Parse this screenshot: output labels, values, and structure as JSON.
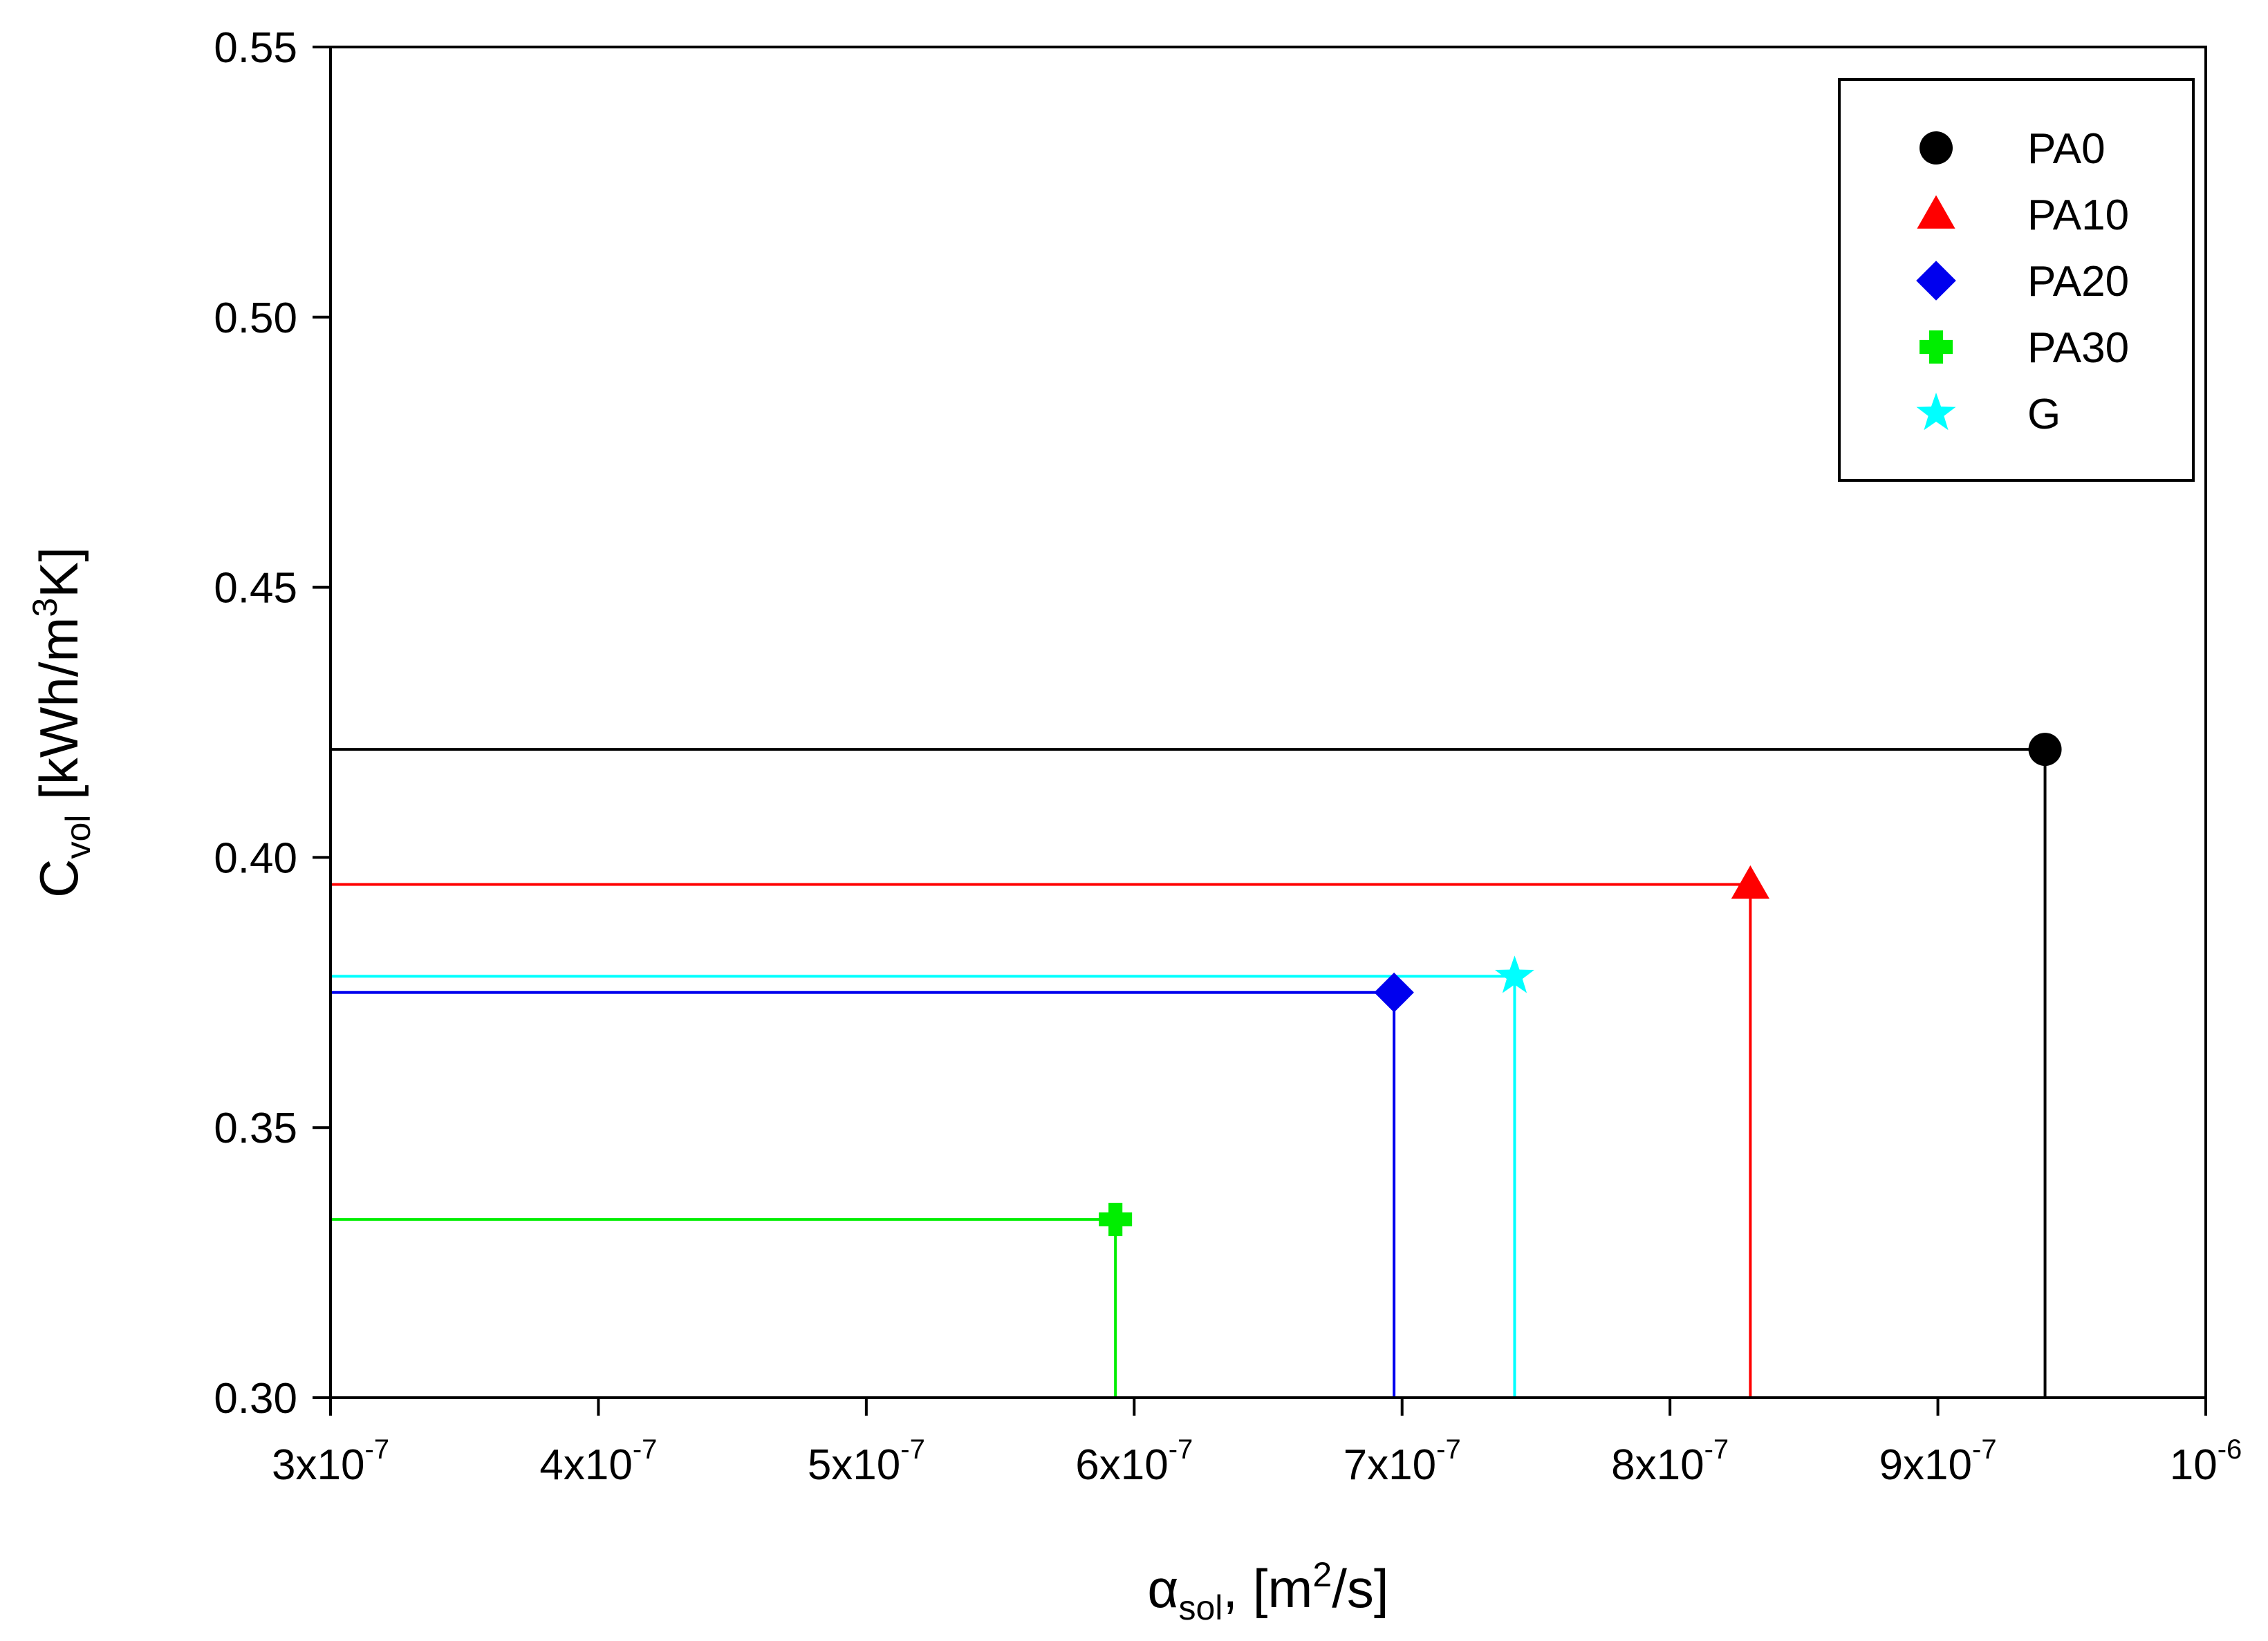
{
  "chart_data": {
    "type": "scatter",
    "xlabel": "αsol, [m2/s]",
    "ylabel": "Cvol [kWh/m3K]",
    "xlabel_parts": {
      "symbol": "α",
      "sub": "sol",
      "mid": ", [m",
      "sup": "2",
      "end": "/s]"
    },
    "ylabel_parts": {
      "symbol": "C",
      "sub": "vol",
      "mid": " [kWh/m",
      "sup": "3",
      "end": "K]"
    },
    "xlim": [
      3e-07,
      1e-06
    ],
    "ylim": [
      0.3,
      0.55
    ],
    "xticks": [
      {
        "value": 3e-07,
        "mantissa": "3x10",
        "exp": "-7"
      },
      {
        "value": 4e-07,
        "mantissa": "4x10",
        "exp": "-7"
      },
      {
        "value": 5e-07,
        "mantissa": "5x10",
        "exp": "-7"
      },
      {
        "value": 6e-07,
        "mantissa": "6x10",
        "exp": "-7"
      },
      {
        "value": 7e-07,
        "mantissa": "7x10",
        "exp": "-7"
      },
      {
        "value": 8e-07,
        "mantissa": "8x10",
        "exp": "-7"
      },
      {
        "value": 9e-07,
        "mantissa": "9x10",
        "exp": "-7"
      },
      {
        "value": 1e-06,
        "mantissa": "10",
        "exp": "-6"
      }
    ],
    "yticks": [
      {
        "value": 0.3,
        "label": "0.30"
      },
      {
        "value": 0.35,
        "label": "0.35"
      },
      {
        "value": 0.4,
        "label": "0.40"
      },
      {
        "value": 0.45,
        "label": "0.45"
      },
      {
        "value": 0.5,
        "label": "0.50"
      },
      {
        "value": 0.55,
        "label": "0.55"
      }
    ],
    "grid": false,
    "legend_position": "top-right",
    "drop_lines": true,
    "series": [
      {
        "name": "PA0",
        "x": 9.4e-07,
        "y": 0.42,
        "color": "#000000",
        "marker": "circle"
      },
      {
        "name": "PA10",
        "x": 8.3e-07,
        "y": 0.395,
        "color": "#ff0000",
        "marker": "triangle"
      },
      {
        "name": "PA20",
        "x": 6.97e-07,
        "y": 0.375,
        "color": "#0000ee",
        "marker": "diamond"
      },
      {
        "name": "PA30",
        "x": 5.93e-07,
        "y": 0.333,
        "color": "#00ee00",
        "marker": "plus"
      },
      {
        "name": "G",
        "x": 7.42e-07,
        "y": 0.378,
        "color": "#00ffff",
        "marker": "star"
      }
    ]
  }
}
